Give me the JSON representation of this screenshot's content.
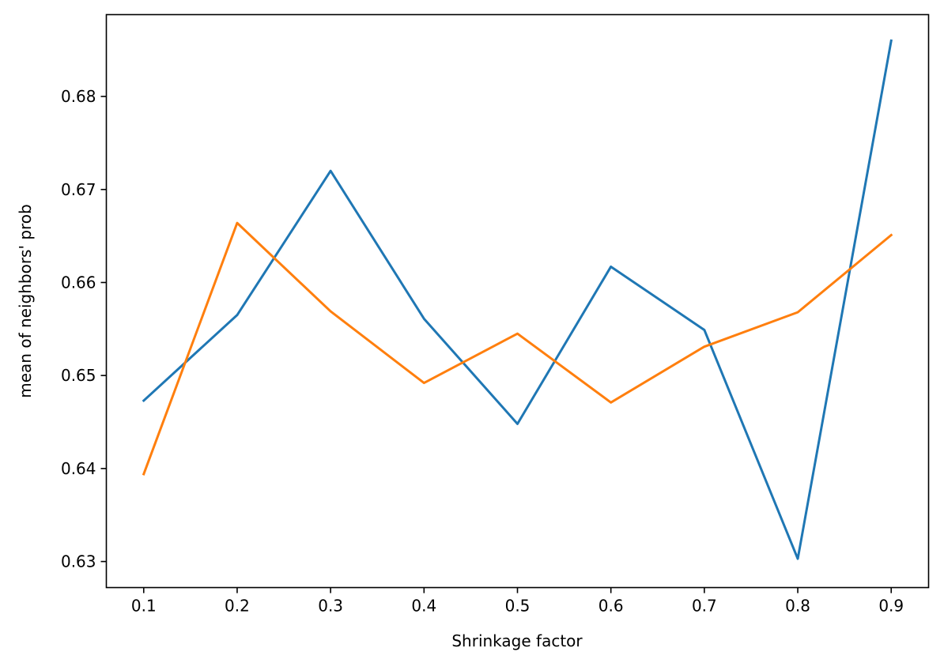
{
  "chart_data": {
    "type": "line",
    "title": "",
    "xlabel": "Shrinkage factor",
    "ylabel": "mean of neighbors' prob",
    "x": [
      0.1,
      0.2,
      0.3,
      0.4,
      0.5,
      0.6,
      0.7,
      0.8,
      0.9
    ],
    "xticks": [
      "0.1",
      "0.2",
      "0.3",
      "0.4",
      "0.5",
      "0.6",
      "0.7",
      "0.8",
      "0.9"
    ],
    "yticks": [
      "0.63",
      "0.64",
      "0.65",
      "0.66",
      "0.67",
      "0.68"
    ],
    "xlim": [
      0.06,
      0.94
    ],
    "ylim": [
      0.6272,
      0.6888
    ],
    "grid": false,
    "series": [
      {
        "color": "#1f77b4",
        "values": [
          0.6473,
          0.6565,
          0.672,
          0.6561,
          0.6448,
          0.6617,
          0.6549,
          0.6303,
          0.686
        ]
      },
      {
        "color": "#ff7f0e",
        "values": [
          0.6394,
          0.6664,
          0.6569,
          0.6492,
          0.6545,
          0.6471,
          0.6531,
          0.6568,
          0.6651
        ]
      }
    ]
  }
}
